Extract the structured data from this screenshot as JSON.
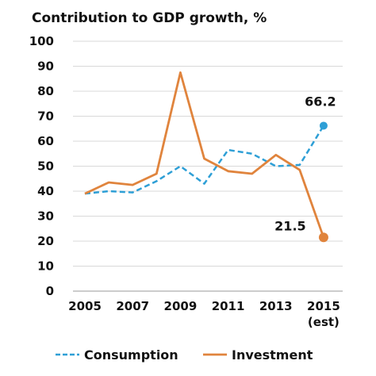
{
  "chart_data": {
    "type": "line",
    "title": "Contribution to GDP growth, %",
    "xlabel": "",
    "ylabel": "",
    "ylim": [
      0,
      100
    ],
    "yticks": [
      "0",
      "10",
      "20",
      "30",
      "40",
      "50",
      "60",
      "70",
      "80",
      "90",
      "100"
    ],
    "x": [
      2004,
      2005,
      2006,
      2007,
      2008,
      2009,
      2010,
      2011,
      2012,
      2013,
      2014,
      2015
    ],
    "xticks": [
      "2005",
      "2007",
      "2009",
      "2011",
      "2013",
      "2015"
    ],
    "xtick_sub": "(est)",
    "grid": true,
    "legend_position": "bottom",
    "series": [
      {
        "name": "Consumption",
        "color": "#2e9fd6",
        "style": "dashed",
        "values": [
          39,
          40,
          39.5,
          44,
          50,
          43,
          56.5,
          55,
          50,
          50.5,
          66.2
        ],
        "x": [
          2004.5,
          2005.5,
          2006.5,
          2007.5,
          2008.5,
          2009.5,
          2010.5,
          2011.5,
          2012.5,
          2013.5,
          2014.5
        ],
        "end_label": "66.2"
      },
      {
        "name": "Investment",
        "color": "#e0843d",
        "style": "solid",
        "values": [
          39,
          43.5,
          42.5,
          47,
          87.5,
          53,
          48,
          47,
          54.5,
          48.5,
          21.5
        ],
        "x": [
          2004.5,
          2005.5,
          2006.5,
          2007.5,
          2008.5,
          2009.5,
          2010.5,
          2011.5,
          2012.5,
          2013.5,
          2014.5
        ],
        "end_label": "21.5"
      }
    ]
  }
}
